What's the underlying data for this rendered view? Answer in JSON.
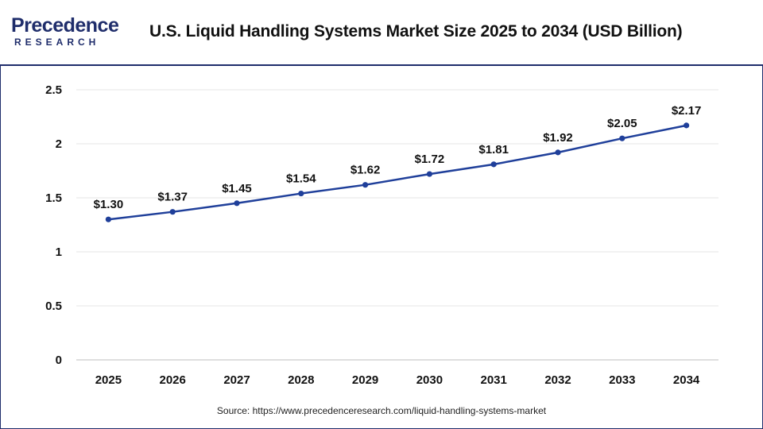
{
  "header": {
    "logo_main": "Precedence",
    "logo_sub": "RESEARCH",
    "title": "U.S. Liquid Handling Systems Market Size 2025 to 2034 (USD Billion)"
  },
  "source": "Source: https://www.precedenceresearch.com/liquid-handling-systems-market",
  "colors": {
    "brand": "#1f2d6b",
    "line": "#1f3f9a",
    "grid": "#e6e6e6"
  },
  "chart_data": {
    "type": "line",
    "title": "U.S. Liquid Handling Systems Market Size 2025 to 2034 (USD Billion)",
    "xlabel": "",
    "ylabel": "",
    "categories": [
      "2025",
      "2026",
      "2027",
      "2028",
      "2029",
      "2030",
      "2031",
      "2032",
      "2033",
      "2034"
    ],
    "series": [
      {
        "values": [
          1.3,
          1.37,
          1.45,
          1.54,
          1.62,
          1.72,
          1.81,
          1.92,
          2.05,
          2.17
        ],
        "labels": [
          "$1.30",
          "$1.37",
          "$1.45",
          "$1.54",
          "$1.62",
          "$1.72",
          "$1.81",
          "$1.92",
          "$2.05",
          "$2.17"
        ]
      }
    ],
    "ylim": [
      0,
      2.5
    ],
    "yticks": [
      "0",
      "0.5",
      "1",
      "1.5",
      "2",
      "2.5"
    ],
    "ytick_values": [
      0,
      0.5,
      1,
      1.5,
      2,
      2.5
    ],
    "grid": true,
    "legend": "none"
  }
}
